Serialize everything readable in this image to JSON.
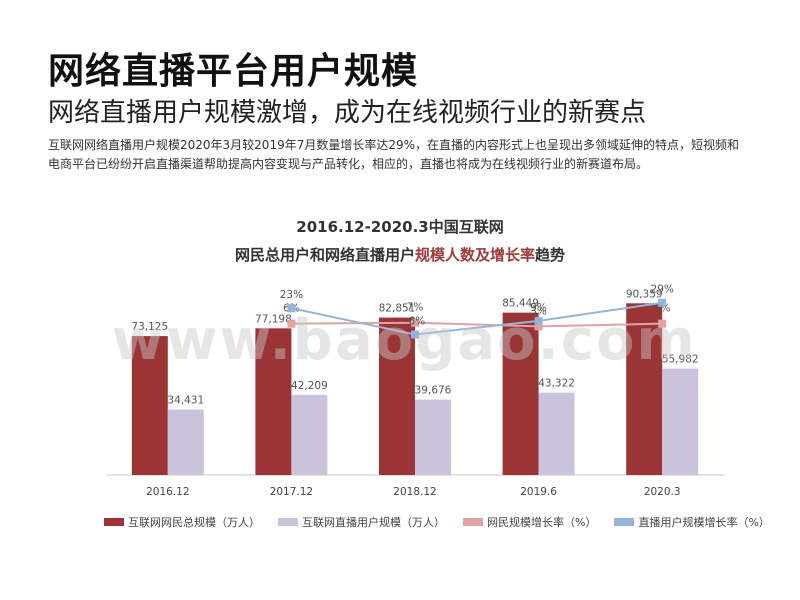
{
  "header": {
    "title": "网络直播平台用户规模",
    "subtitle": "网络直播用户规模激增，成为在线视频行业的新赛点",
    "description": "互联网网络直播用户规模2020年3月较2019年7月数量增长率达29%，在直播的内容形式上也呈现出多领域延伸的特点，短视频和电商平台已纷纷开启直播渠道帮助提高内容变现与产品转化，相应的，直播也将成为在线视频行业的新赛道布局。"
  },
  "watermark": "www.baogao.com",
  "chart_data": {
    "type": "bar",
    "title_line1": "2016.12-2020.3中国互联网",
    "title_line2_prefix": "网民总用户和网络直播用户",
    "title_line2_highlight": "规模人数及增长率",
    "title_line2_suffix": "趋势",
    "categories": [
      "2016.12",
      "2017.12",
      "2018.12",
      "2019.6",
      "2020.3"
    ],
    "series": [
      {
        "name": "互联网网民总规模（万人）",
        "type": "bar",
        "color": "#9b3535",
        "values": [
          73125,
          77198,
          82851,
          85449,
          90359
        ],
        "labels": [
          "73,125",
          "77,198",
          "82,851",
          "85,449",
          "90,359"
        ]
      },
      {
        "name": "互联网直播用户规模（万人）",
        "type": "bar",
        "color": "#cbc3dc",
        "values": [
          34431,
          42209,
          39676,
          43322,
          55982
        ],
        "labels": [
          "34,431",
          "42,209",
          "39,676",
          "43,322",
          "55,982"
        ]
      },
      {
        "name": "网民规模增长率（%）",
        "type": "line",
        "color": "#dfa3a3",
        "values": [
          null,
          6,
          7,
          3,
          6
        ],
        "labels": [
          "",
          "6%",
          "7%",
          "3%",
          "6%"
        ]
      },
      {
        "name": "直播用户规模增长率（%）",
        "type": "line",
        "color": "#94b4db",
        "values": [
          null,
          23,
          -6,
          9,
          29
        ],
        "labels": [
          "",
          "23%",
          "-6%",
          "9%",
          "29%"
        ]
      }
    ],
    "bar_ylim": [
      0,
      100000
    ],
    "rate_ylim": [
      -45,
      65
    ],
    "grid": false,
    "legend_position": "bottom"
  }
}
